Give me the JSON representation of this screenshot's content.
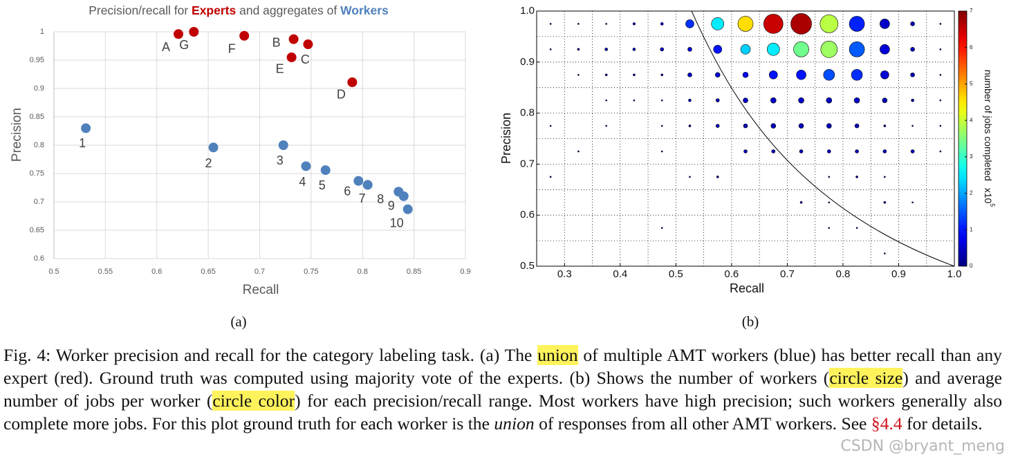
{
  "chart_data": [
    {
      "type": "scatter",
      "title_parts": [
        "Precision/recall for",
        "and aggregates of"
      ],
      "x_label": "Recall",
      "y_label": "Precision",
      "panel_label": "(a)",
      "xlim": [
        0.5,
        0.9
      ],
      "xticks": [
        0.5,
        0.55,
        0.6,
        0.65,
        0.7,
        0.75,
        0.8,
        0.85,
        0.9
      ],
      "ylim": [
        0.6,
        1
      ],
      "yticks": [
        0.6,
        0.65,
        0.7,
        0.75,
        0.8,
        0.85,
        0.9,
        0.95,
        1
      ],
      "grid": true,
      "series": [
        {
          "name": "Experts",
          "color": "#c00000",
          "x": [
            0.621,
            0.636,
            0.685,
            0.733,
            0.747,
            0.731,
            0.79
          ],
          "y": [
            0.996,
            1.0,
            0.993,
            0.987,
            0.978,
            0.955,
            0.911
          ],
          "point_labels": [
            "A",
            "G",
            "F",
            "B",
            "C",
            "E",
            "D"
          ]
        },
        {
          "name": "Workers",
          "color": "#4f81bd",
          "x": [
            0.531,
            0.655,
            0.723,
            0.745,
            0.764,
            0.796,
            0.805,
            0.835,
            0.84,
            0.844
          ],
          "y": [
            0.83,
            0.796,
            0.8,
            0.763,
            0.756,
            0.737,
            0.73,
            0.718,
            0.71,
            0.687
          ],
          "point_labels": [
            "1",
            "2",
            "3",
            "4",
            "5",
            "6",
            "7",
            "8",
            "9",
            "10"
          ]
        }
      ]
    },
    {
      "type": "bubble",
      "x_label": "Recall",
      "y_label": "Precision",
      "panel_label": "(b)",
      "xlim": [
        0.25,
        1.0
      ],
      "xticks": [
        0.3,
        0.4,
        0.5,
        0.6,
        0.7,
        0.8,
        0.9,
        {
          "value": 1.0,
          "label": "1.0"
        }
      ],
      "ylim": [
        0.5,
        1.0
      ],
      "yticks": [
        0.5,
        0.6,
        0.7,
        0.8,
        0.9,
        {
          "value": 1.0,
          "label": "1.0"
        }
      ],
      "grid": true,
      "x": [
        0.275,
        0.325,
        0.375,
        0.425,
        0.475,
        0.525,
        0.575,
        0.625,
        0.675,
        0.725,
        0.775,
        0.825,
        0.875,
        0.925,
        0.975,
        0.275,
        0.325,
        0.375,
        0.425,
        0.475,
        0.525,
        0.575,
        0.625,
        0.675,
        0.725,
        0.775,
        0.825,
        0.875,
        0.925,
        0.975,
        0.325,
        0.375,
        0.425,
        0.475,
        0.525,
        0.575,
        0.625,
        0.675,
        0.725,
        0.775,
        0.825,
        0.875,
        0.925,
        0.975,
        0.375,
        0.425,
        0.475,
        0.525,
        0.575,
        0.625,
        0.675,
        0.725,
        0.775,
        0.825,
        0.875,
        0.925,
        0.975,
        0.275,
        0.375,
        0.475,
        0.525,
        0.575,
        0.625,
        0.675,
        0.725,
        0.775,
        0.825,
        0.875,
        0.925,
        0.975,
        0.325,
        0.475,
        0.625,
        0.675,
        0.725,
        0.775,
        0.825,
        0.875,
        0.925,
        0.975,
        0.275,
        0.525,
        0.575,
        0.775,
        0.825,
        0.875,
        0.725,
        0.775,
        0.875,
        0.925,
        0.475,
        0.775,
        0.825,
        0.875
      ],
      "y": [
        0.975,
        0.975,
        0.975,
        0.975,
        0.975,
        0.975,
        0.975,
        0.975,
        0.975,
        0.975,
        0.975,
        0.975,
        0.975,
        0.975,
        0.975,
        0.925,
        0.925,
        0.925,
        0.925,
        0.925,
        0.925,
        0.925,
        0.925,
        0.925,
        0.925,
        0.925,
        0.925,
        0.925,
        0.925,
        0.925,
        0.875,
        0.875,
        0.875,
        0.875,
        0.875,
        0.875,
        0.875,
        0.875,
        0.875,
        0.875,
        0.875,
        0.875,
        0.875,
        0.875,
        0.825,
        0.825,
        0.825,
        0.825,
        0.825,
        0.825,
        0.825,
        0.825,
        0.825,
        0.825,
        0.825,
        0.825,
        0.825,
        0.775,
        0.775,
        0.775,
        0.775,
        0.775,
        0.775,
        0.775,
        0.775,
        0.775,
        0.775,
        0.775,
        0.775,
        0.775,
        0.725,
        0.725,
        0.725,
        0.725,
        0.725,
        0.725,
        0.725,
        0.725,
        0.725,
        0.725,
        0.675,
        0.675,
        0.675,
        0.675,
        0.675,
        0.675,
        0.625,
        0.625,
        0.625,
        0.625,
        0.575,
        0.575,
        0.575,
        0.525
      ],
      "sizes": [
        1,
        1,
        1,
        1.8,
        2,
        6,
        9,
        11,
        14,
        15,
        13,
        11,
        7,
        3,
        1,
        1,
        1.5,
        2,
        2,
        2.5,
        3,
        6,
        7,
        9,
        11,
        12,
        11,
        7,
        3,
        1,
        1,
        1.5,
        1.5,
        1.5,
        3,
        3.5,
        4,
        6,
        7,
        8,
        8,
        6,
        3,
        1,
        1,
        1,
        1,
        2,
        2.5,
        3.5,
        4,
        4,
        4,
        4,
        3.5,
        2,
        1,
        1,
        1,
        1,
        1.5,
        2.5,
        3,
        3.5,
        3.5,
        3.5,
        3,
        1.5,
        1,
        1,
        1,
        1,
        2.5,
        2.5,
        2.5,
        2.5,
        2.5,
        2.5,
        2.5,
        1,
        1,
        1,
        1.5,
        1,
        1.5,
        1,
        1.5,
        1,
        1.5,
        1,
        1,
        1,
        1,
        1
      ],
      "jobs": [
        0.3,
        0.3,
        0.3,
        0.4,
        0.5,
        1.2,
        2.5,
        4.6,
        6.5,
        6.7,
        3.9,
        1.1,
        0.5,
        0.4,
        0.3,
        0.3,
        0.3,
        0.3,
        0.4,
        0.5,
        0.6,
        1.0,
        2.3,
        2.5,
        3.4,
        3.7,
        1.5,
        0.6,
        0.4,
        0.3,
        0.3,
        0.3,
        0.3,
        0.3,
        0.5,
        0.6,
        0.8,
        1.0,
        1.0,
        1.4,
        1.2,
        0.6,
        0.4,
        0.3,
        0.3,
        0.3,
        0.3,
        0.4,
        0.4,
        0.5,
        0.5,
        0.5,
        0.5,
        0.5,
        0.4,
        0.3,
        0.3,
        0.3,
        0.3,
        0.3,
        0.3,
        0.4,
        0.4,
        0.4,
        0.4,
        0.4,
        0.4,
        0.3,
        0.3,
        0.3,
        0.3,
        0.3,
        0.4,
        0.4,
        0.4,
        0.4,
        0.4,
        0.4,
        0.4,
        0.3,
        0.3,
        0.3,
        0.3,
        0.3,
        0.3,
        0.3,
        0.3,
        0.3,
        0.3,
        0.3,
        0.3,
        0.3,
        0.3,
        0.3
      ],
      "colorbar": {
        "label": "number of jobs completed",
        "multiplier_label": "x10",
        "multiplier_exponent": "5",
        "lim": [
          0,
          7
        ],
        "ticks": [
          0,
          1,
          2,
          3,
          4,
          5,
          6,
          7
        ],
        "colormap": "jet"
      }
    }
  ],
  "caption": [
    "Fig. 4: Worker precision and recall for the category labeling task. (a) The ",
    "union",
    " of multiple AMT workers (blue) has better recall than any expert (red). Ground truth was computed using majority vote of the experts. (b) Shows the number of workers (",
    "circle size",
    ") and average number of jobs per worker (",
    "circle color",
    ") for each precision/recall range. Most workers have high precision; such workers generally also complete more jobs. For this plot ground truth for each worker is the ",
    "union",
    " of responses from all other AMT workers. See ",
    "§4.4",
    " for details."
  ],
  "watermark": "CSDN @bryant_meng"
}
